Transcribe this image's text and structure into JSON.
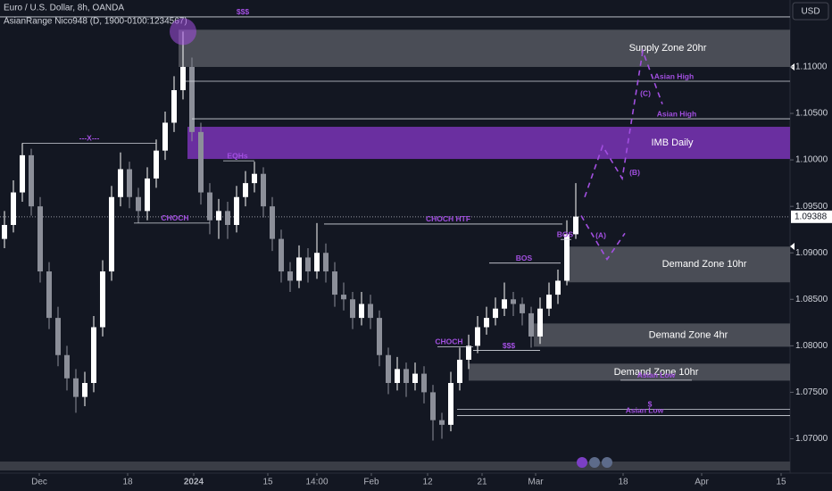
{
  "header": {
    "symbol": "Euro / U.S. Dollar, 8h, OANDA",
    "indicator": "AsianRange Nico948 (D, 1900-0100:1234567)",
    "currency": "USD"
  },
  "chart_data": {
    "type": "candlestick",
    "up_color": "#ffffff",
    "down_color": "#8c8f99",
    "zone_color": "#5d6068",
    "imb_color": "#6a2fa0",
    "annotation_color": "#a24fe0",
    "xlim": [
      -0.5,
      88
    ],
    "ylim": [
      1.0663,
      1.1172
    ],
    "xticks": [
      {
        "value": 3.9,
        "label": "Dec"
      },
      {
        "value": 13.8,
        "label": "18"
      },
      {
        "value": 21.2,
        "label": "2024"
      },
      {
        "value": 29.5,
        "label": "15"
      },
      {
        "value": 35,
        "label": "14:00"
      },
      {
        "value": 41.1,
        "label": "Feb"
      },
      {
        "value": 47.4,
        "label": "12"
      },
      {
        "value": 53.5,
        "label": "21"
      },
      {
        "value": 59.5,
        "label": "Mar"
      },
      {
        "value": 69.3,
        "label": "18"
      },
      {
        "value": 78.1,
        "label": "Apr"
      },
      {
        "value": 87,
        "label": "15"
      }
    ],
    "yticks": [
      {
        "value": 1.11,
        "label": "1.11000"
      },
      {
        "value": 1.105,
        "label": "1.10500"
      },
      {
        "value": 1.1,
        "label": "1.10000"
      },
      {
        "value": 1.095,
        "label": "1.09500"
      },
      {
        "value": 1.09,
        "label": "1.09000"
      },
      {
        "value": 1.085,
        "label": "1.08500"
      },
      {
        "value": 1.08,
        "label": "1.08000"
      },
      {
        "value": 1.075,
        "label": "1.07500"
      },
      {
        "value": 1.07,
        "label": "1.07000"
      }
    ],
    "last_price": 1.09388,
    "ohlc": [
      [
        1.0915,
        1.0945,
        1.0905,
        1.093
      ],
      [
        1.093,
        1.0978,
        1.0922,
        1.0965
      ],
      [
        1.0965,
        1.1018,
        1.0955,
        1.1005
      ],
      [
        1.1005,
        1.1012,
        1.094,
        1.095
      ],
      [
        1.095,
        1.096,
        1.0868,
        1.088
      ],
      [
        1.088,
        1.089,
        1.0818,
        1.083
      ],
      [
        1.083,
        1.0842,
        1.0778,
        1.079
      ],
      [
        1.079,
        1.08,
        1.0752,
        1.0765
      ],
      [
        1.0765,
        1.0775,
        1.0728,
        1.0745
      ],
      [
        1.0745,
        1.0772,
        1.0735,
        1.076
      ],
      [
        1.076,
        1.0832,
        1.075,
        1.082
      ],
      [
        1.082,
        1.0892,
        1.081,
        1.088
      ],
      [
        1.088,
        1.0972,
        1.087,
        1.096
      ],
      [
        1.096,
        1.1008,
        1.095,
        1.099
      ],
      [
        1.099,
        1.0998,
        1.0948,
        1.096
      ],
      [
        1.096,
        1.097,
        1.0932,
        1.0945
      ],
      [
        1.0945,
        1.0992,
        1.0935,
        1.098
      ],
      [
        1.098,
        1.1022,
        1.097,
        1.101
      ],
      [
        1.101,
        1.1052,
        1.1,
        1.104
      ],
      [
        1.104,
        1.109,
        1.103,
        1.1075
      ],
      [
        1.1075,
        1.1138,
        1.1065,
        1.11
      ],
      [
        1.11,
        1.111,
        1.102,
        1.103
      ],
      [
        1.103,
        1.104,
        1.0952,
        1.0965
      ],
      [
        1.0965,
        1.0975,
        1.092,
        1.0935
      ],
      [
        1.0935,
        1.0958,
        1.0915,
        1.0945
      ],
      [
        1.0945,
        1.0955,
        1.0915,
        1.093
      ],
      [
        1.093,
        1.0972,
        1.0922,
        1.096
      ],
      [
        1.096,
        1.0988,
        1.095,
        1.0975
      ],
      [
        1.0975,
        1.0998,
        1.0965,
        1.0985
      ],
      [
        1.0985,
        1.0992,
        1.0938,
        1.095
      ],
      [
        1.095,
        1.096,
        1.0902,
        1.0915
      ],
      [
        1.0915,
        1.0925,
        1.0868,
        1.088
      ],
      [
        1.088,
        1.089,
        1.0858,
        1.087
      ],
      [
        1.087,
        1.0908,
        1.0862,
        1.0895
      ],
      [
        1.0895,
        1.0905,
        1.0868,
        1.088
      ],
      [
        1.088,
        1.0932,
        1.0872,
        1.09
      ],
      [
        1.09,
        1.091,
        1.0868,
        1.088
      ],
      [
        1.088,
        1.089,
        1.0842,
        1.0855
      ],
      [
        1.0855,
        1.0868,
        1.0838,
        1.085
      ],
      [
        1.085,
        1.0858,
        1.0818,
        1.083
      ],
      [
        1.083,
        1.0858,
        1.0822,
        1.0845
      ],
      [
        1.0845,
        1.0855,
        1.0818,
        1.083
      ],
      [
        1.083,
        1.0838,
        1.0778,
        1.079
      ],
      [
        1.079,
        1.0798,
        1.0748,
        1.076
      ],
      [
        1.076,
        1.0788,
        1.0752,
        1.0775
      ],
      [
        1.0775,
        1.0782,
        1.0745,
        1.076
      ],
      [
        1.076,
        1.0782,
        1.0752,
        1.077
      ],
      [
        1.077,
        1.0778,
        1.0738,
        1.075
      ],
      [
        1.075,
        1.0758,
        1.0698,
        1.072
      ],
      [
        1.072,
        1.0728,
        1.07,
        1.0715
      ],
      [
        1.0715,
        1.0772,
        1.0708,
        1.076
      ],
      [
        1.076,
        1.0798,
        1.0752,
        1.0785
      ],
      [
        1.0785,
        1.0812,
        1.0775,
        1.08
      ],
      [
        1.08,
        1.0832,
        1.0792,
        1.082
      ],
      [
        1.082,
        1.0842,
        1.0812,
        1.083
      ],
      [
        1.083,
        1.0852,
        1.0822,
        1.084
      ],
      [
        1.084,
        1.0868,
        1.0832,
        1.085
      ],
      [
        1.085,
        1.0858,
        1.0832,
        1.0845
      ],
      [
        1.0845,
        1.0852,
        1.0822,
        1.0835
      ],
      [
        1.0835,
        1.0842,
        1.0798,
        1.081
      ],
      [
        1.081,
        1.0852,
        1.0802,
        1.084
      ],
      [
        1.084,
        1.0868,
        1.0832,
        1.0855
      ],
      [
        1.0855,
        1.0882,
        1.0845,
        1.087
      ],
      [
        1.087,
        1.0935,
        1.0865,
        1.092
      ],
      [
        1.092,
        1.0975,
        1.0915,
        1.0939
      ]
    ],
    "zones": [
      {
        "label": "Supply Zone 20hr",
        "x": [
          19.5,
          88
        ],
        "price": [
          1.114,
          1.11
        ],
        "kind": "supply"
      },
      {
        "label": "IMB Daily",
        "x": [
          20.5,
          88
        ],
        "price": [
          1.10356,
          1.1001
        ],
        "kind": "imb"
      },
      {
        "label": "Demand Zone 10hr",
        "x": [
          63,
          88
        ],
        "price": [
          1.09067,
          1.08683
        ],
        "kind": "demand"
      },
      {
        "label": "Demand Zone 4hr",
        "x": [
          59.3,
          88
        ],
        "price": [
          1.0824,
          1.0799
        ],
        "kind": "demand"
      },
      {
        "label": "Demand Zone 10hr",
        "x": [
          52,
          88
        ],
        "price": [
          1.07808,
          1.07625
        ],
        "kind": "demand"
      }
    ],
    "levels": [
      {
        "label": "$$$",
        "price": 1.11538,
        "x": [
          -0.5,
          88
        ]
      },
      {
        "label": "Asian High",
        "price": 1.10846,
        "x": [
          20.3,
          88
        ]
      },
      {
        "label": "Asian High",
        "price": 1.10442,
        "x": [
          21,
          88
        ]
      },
      {
        "label": "---X---",
        "price": 1.1018,
        "x": [
          2,
          17
        ]
      },
      {
        "label": "EQHs",
        "price": 1.0999,
        "x": [
          24.5,
          28
        ]
      },
      {
        "label": "CHOCH",
        "price": 1.0932,
        "x": [
          14.5,
          23
        ]
      },
      {
        "label": "CHOCH HTF",
        "price": 1.0931,
        "x": [
          35.8,
          62.5
        ]
      },
      {
        "label": "BOS",
        "price": 1.0889,
        "x": [
          54.3,
          62.3
        ]
      },
      {
        "label": "BOS",
        "price": 1.09144,
        "x": [
          62.3,
          63.5
        ]
      },
      {
        "label": "CHOCH",
        "price": 1.0799,
        "x": [
          48.5,
          52.5
        ]
      },
      {
        "label": "$$$",
        "price": 1.0795,
        "x": [
          52.5,
          60
        ]
      },
      {
        "label": "Asian Low",
        "price": 1.0763,
        "x": [
          69,
          77
        ]
      },
      {
        "label": "$",
        "price": 1.07317,
        "x": [
          50.7,
          88
        ]
      },
      {
        "label": "Asian Low",
        "price": 1.0725,
        "x": [
          50.7,
          88
        ]
      }
    ],
    "projections": [
      {
        "points": [
          [
            64.6,
            1.094
          ],
          [
            67.5,
            1.0893
          ],
          [
            69.5,
            1.0921
          ]
        ],
        "label": "(A)",
        "at": [
          66.8,
          1.0918
        ]
      },
      {
        "points": [
          [
            65,
            1.096
          ],
          [
            67,
            1.1015
          ],
          [
            69.2,
            1.098
          ],
          [
            71.5,
            1.1117
          ],
          [
            73.7,
            1.106
          ]
        ],
        "label": "(B)",
        "at": [
          70.6,
          1.0986
        ]
      }
    ],
    "wave_labels": [
      {
        "label": "(C)",
        "at": [
          71.8,
          1.1071
        ]
      }
    ]
  }
}
